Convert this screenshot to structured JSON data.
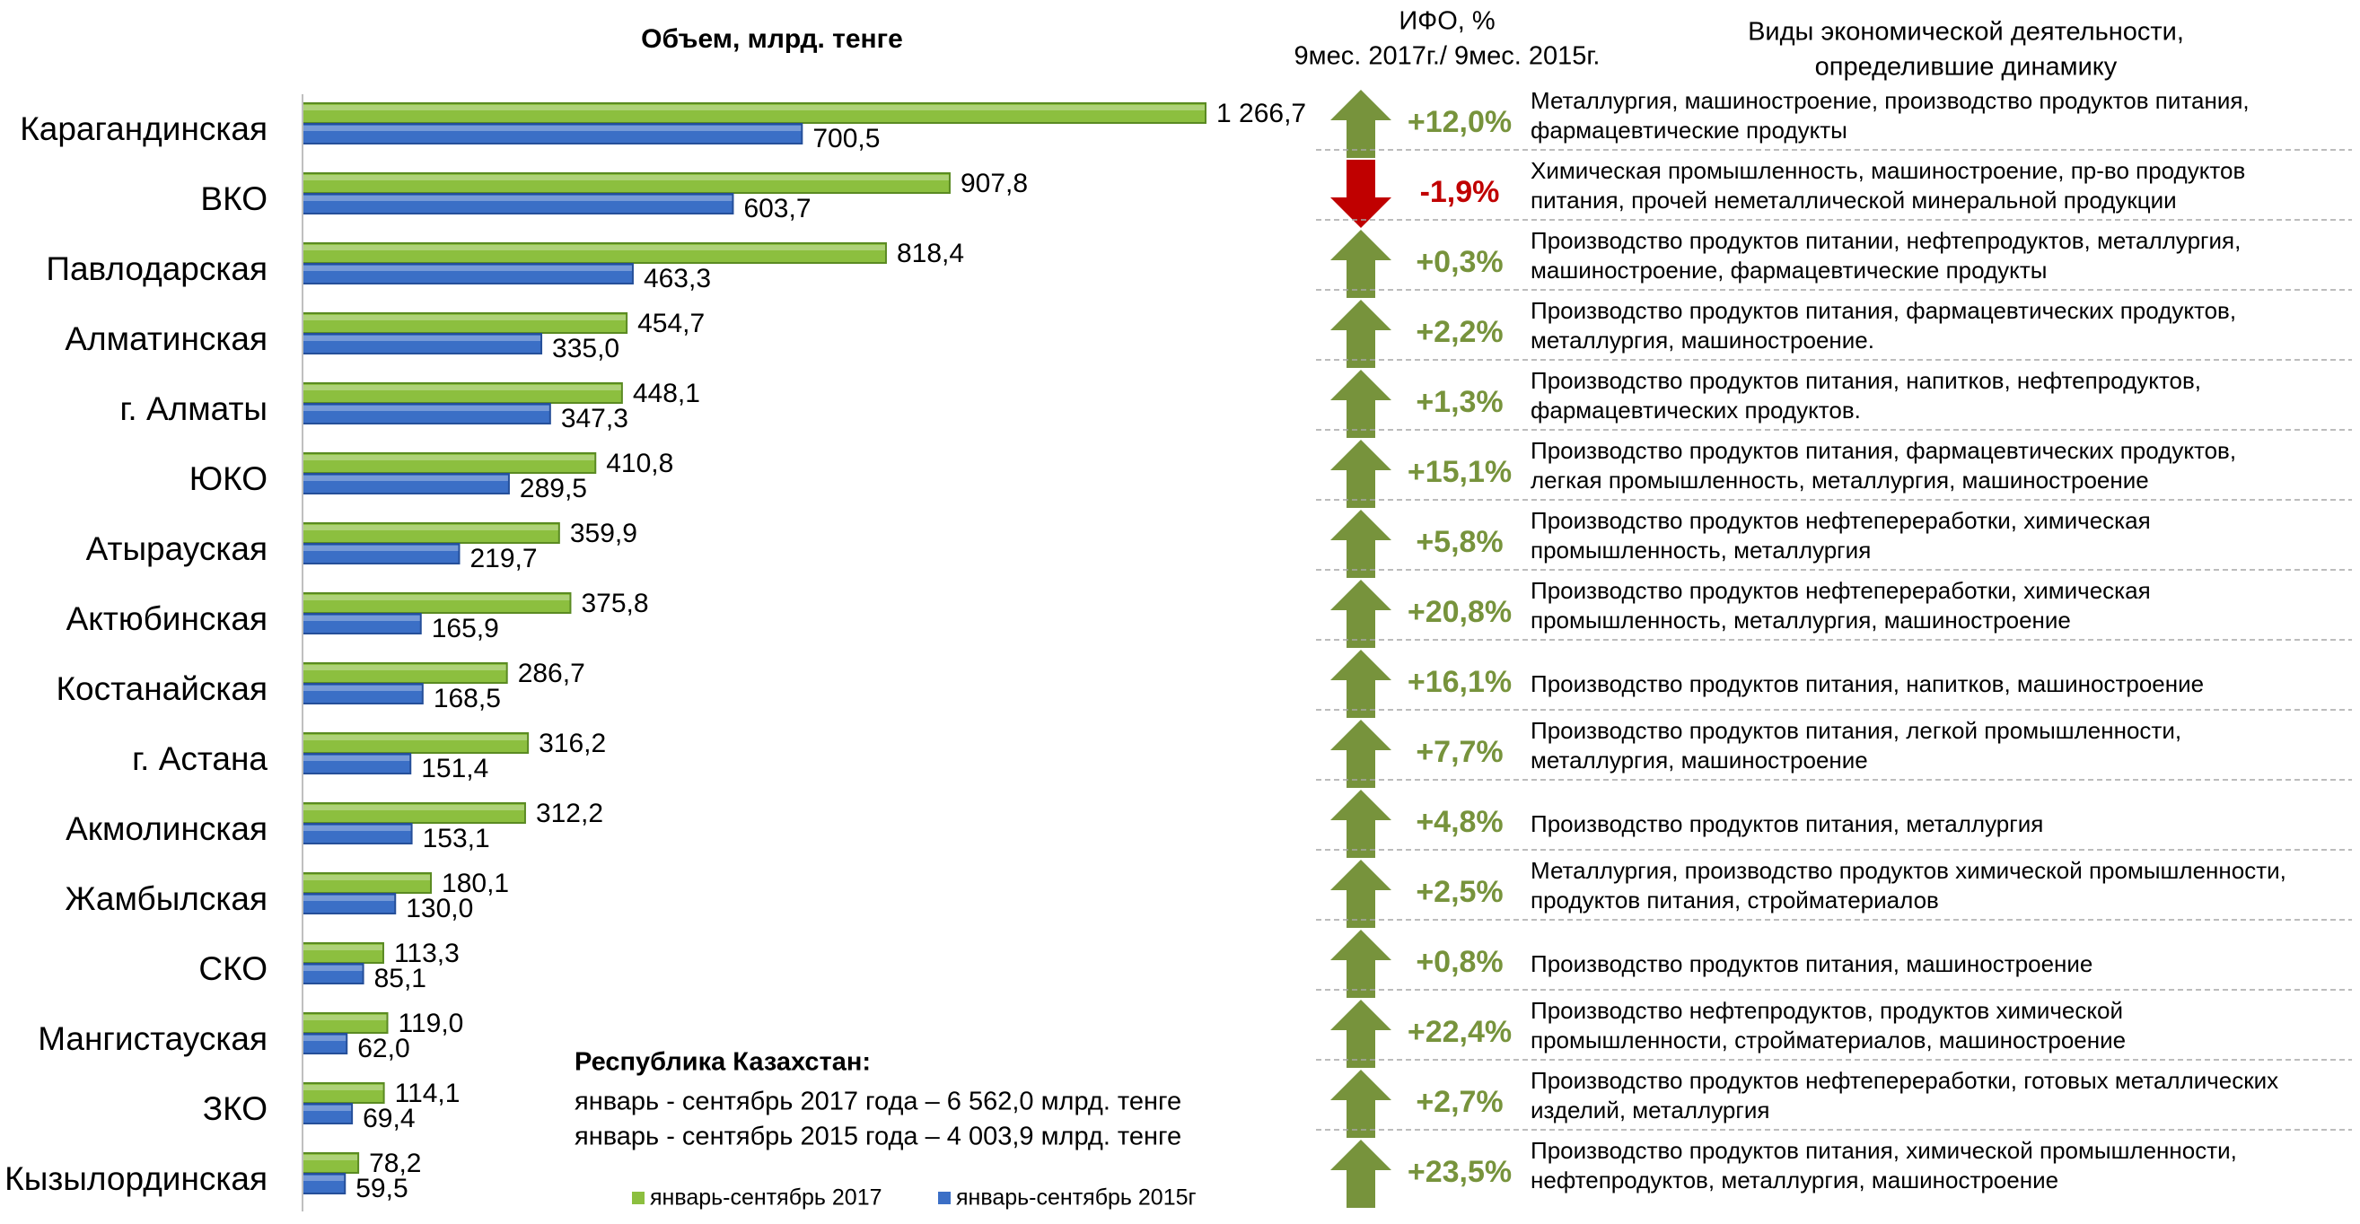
{
  "chart_data": {
    "type": "bar",
    "orientation": "horizontal",
    "title": "Объем, млрд. тенге",
    "categories": [
      "Карагандинская",
      "ВКО",
      "Павлодарская",
      "Алматинская",
      "г. Алматы",
      "ЮКО",
      "Атырауская",
      "Актюбинская",
      "Костанайская",
      "г. Астана",
      "Акмолинская",
      "Жамбылская",
      "СКО",
      "Мангистауская",
      "ЗКО",
      "Кызылординская"
    ],
    "series": [
      {
        "name": "январь-сентябрь 2017",
        "color": "#8cbf3f",
        "values": [
          1266.7,
          907.8,
          818.4,
          454.7,
          448.1,
          410.8,
          359.9,
          375.8,
          286.7,
          316.2,
          312.2,
          180.1,
          113.3,
          119.0,
          114.1,
          78.2
        ],
        "value_labels": [
          "1 266,7",
          "907,8",
          "818,4",
          "454,7",
          "448,1",
          "410,8",
          "359,9",
          "375,8",
          "286,7",
          "316,2",
          "312,2",
          "180,1",
          "113,3",
          "119,0",
          "114,1",
          "78,2"
        ]
      },
      {
        "name": "январь-сентябрь 2015г",
        "color": "#3b6fc6",
        "values": [
          700.5,
          603.7,
          463.3,
          335.0,
          347.3,
          289.5,
          219.7,
          165.9,
          168.5,
          151.4,
          153.1,
          130.0,
          85.1,
          62.0,
          69.4,
          59.5
        ],
        "value_labels": [
          "700,5",
          "603,7",
          "463,3",
          "335,0",
          "347,3",
          "289,5",
          "219,7",
          "165,9",
          "168,5",
          "151,4",
          "153,1",
          "130,0",
          "85,1",
          "62,0",
          "69,4",
          "59,5"
        ]
      }
    ],
    "legend": "bottom",
    "ifo": {
      "title": "ИФО, %",
      "subtitle": "9мес. 2017г./ 9мес. 2015г.",
      "up_color": "#77933c",
      "down_color": "#c00000",
      "values": [
        12.0,
        -1.9,
        0.3,
        2.2,
        1.3,
        15.1,
        5.8,
        20.8,
        16.1,
        7.7,
        4.8,
        2.5,
        0.8,
        22.4,
        2.7,
        23.5
      ],
      "value_labels": [
        "+12,0%",
        "-1,9%",
        "+0,3%",
        "+2,2%",
        "+1,3%",
        "+15,1%",
        "+5,8%",
        "+20,8%",
        "+16,1%",
        "+7,7%",
        "+4,8%",
        "+2,5%",
        "+0,8%",
        "+22,4%",
        "+2,7%",
        "+23,5%"
      ]
    },
    "activities": {
      "title": [
        "Виды экономической деятельности,",
        "определившие динамику"
      ],
      "rows": [
        [
          "Металлургия, машиностроение, производство продуктов питания,",
          "фармацевтические продукты"
        ],
        [
          "Химическая промышленность, машиностроение, пр-во продуктов",
          "питания, прочей неметаллической минеральной продукции"
        ],
        [
          "Производство продуктов питании, нефтепродуктов, металлургия,",
          "машиностроение, фармацевтические продукты"
        ],
        [
          "Производство продуктов питания, фармацевтических продуктов,",
          "металлургия, машиностроение."
        ],
        [
          "Производство продуктов питания, напитков, нефтепродуктов,",
          "фармацевтических продуктов."
        ],
        [
          "Производство продуктов питания, фармацевтических продуктов,",
          " легкая промышленность,  металлургия, машиностроение"
        ],
        [
          "Производство продуктов нефтепереработки,  химическая",
          "промышленность, металлургия"
        ],
        [
          "Производство  продуктов нефтепереработки, химическая",
          "промышленность, металлургия, машиностроение"
        ],
        [
          "Производство продуктов питания, напитков, машиностроение"
        ],
        [
          "Производство продуктов питания, легкой промышленности,",
          "металлургия, машиностроение"
        ],
        [
          "Производство продуктов питания, металлургия"
        ],
        [
          "Металлургия, производство продуктов химической промышленности,",
          "продуктов питания, стройматериалов"
        ],
        [
          "Производство продуктов питания, машиностроение"
        ],
        [
          "Производство нефтепродуктов, продуктов химической",
          "промышленности, стройматериалов, машиностроение"
        ],
        [
          "Производство продуктов нефтепереработки, готовых металлических",
          "изделий, металлургия"
        ],
        [
          "Производство продуктов питания, химической промышленности,",
          "нефтепродуктов,  металлургия, машиностроение"
        ]
      ]
    },
    "annotation": {
      "title": "Республика Казахстан:",
      "lines": [
        "январь - сентябрь 2017 года – 6 562,0 млрд. тенге",
        "январь - сентябрь 2015 года – 4 003,9 млрд. тенге"
      ]
    }
  }
}
